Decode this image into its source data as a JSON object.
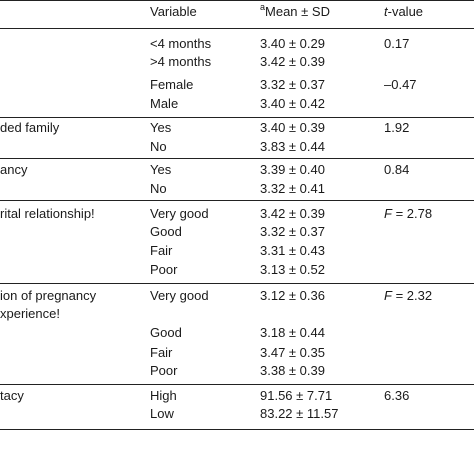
{
  "header": {
    "variable": "Variable",
    "mean_sup": "a",
    "mean": "Mean ± SD",
    "tvalue_italic": "t",
    "tvalue_rest": "-value"
  },
  "rows": [
    {
      "factor": "",
      "level": "<4 months",
      "mean": "3.40 ± 0.29",
      "stat": "0.17"
    },
    {
      "factor": "",
      "level": ">4 months",
      "mean": "3.42 ± 0.39",
      "stat": ""
    },
    {
      "factor": "",
      "level": "Female",
      "mean": "3.32 ± 0.37",
      "stat": "–0.47"
    },
    {
      "factor": "",
      "level": "Male",
      "mean": "3.40 ± 0.42",
      "stat": ""
    },
    {
      "factor": "ded family",
      "level": "Yes",
      "mean": "3.40 ± 0.39",
      "stat": "1.92"
    },
    {
      "factor": "",
      "level": "No",
      "mean": "3.83 ± 0.44",
      "stat": ""
    },
    {
      "factor": "ancy",
      "level": "Yes",
      "mean": "3.39 ± 0.40",
      "stat": "0.84"
    },
    {
      "factor": "",
      "level": "No",
      "mean": "3.32 ± 0.41",
      "stat": ""
    },
    {
      "factor": "rital relationship!",
      "level": "Very good",
      "mean": "3.42 ± 0.39",
      "stat": "F = 2.78"
    },
    {
      "factor": "",
      "level": "Good",
      "mean": "3.32 ± 0.37",
      "stat": ""
    },
    {
      "factor": "",
      "level": "Fair",
      "mean": "3.31 ± 0.43",
      "stat": ""
    },
    {
      "factor": "",
      "level": "Poor",
      "mean": "3.13 ± 0.52",
      "stat": ""
    },
    {
      "factor": "ion of pregnancy",
      "level": "Very good",
      "mean": "3.12 ± 0.36",
      "stat": "F = 2.32"
    },
    {
      "factor": "xperience!",
      "level": "",
      "mean": "",
      "stat": ""
    },
    {
      "factor": "",
      "level": "Good",
      "mean": "3.18 ± 0.44",
      "stat": ""
    },
    {
      "factor": "",
      "level": "Fair",
      "mean": "3.47 ± 0.35",
      "stat": ""
    },
    {
      "factor": "",
      "level": "Poor",
      "mean": "3.38 ± 0.39",
      "stat": ""
    },
    {
      "factor": "tacy",
      "level": "High",
      "mean": "91.56 ± 7.71",
      "stat": "6.36"
    },
    {
      "factor": "",
      "level": "Low",
      "mean": "83.22 ± 11.57",
      "stat": ""
    }
  ]
}
